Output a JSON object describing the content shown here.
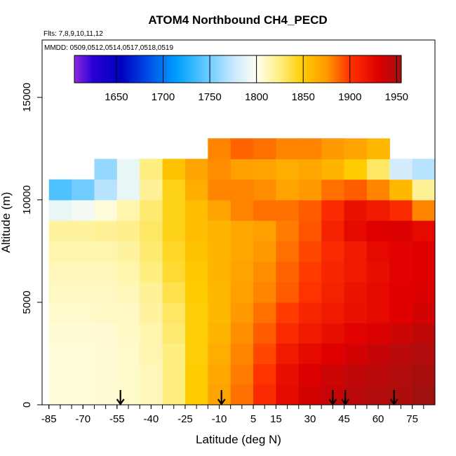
{
  "chart_data": {
    "type": "heatmap",
    "title": "ATOM4 Northbound CH4_PECD",
    "flights_note": "Flts: 7,8,9,10,11,12",
    "dates_note": "MMDD: 0509,0512,0514,0517,0518,0519",
    "xlabel": "Latitude (deg N)",
    "ylabel": "Altitude (m)",
    "xlim": [
      -88,
      85
    ],
    "ylim": [
      0,
      17800
    ],
    "x_ticks": [
      -85,
      -70,
      -55,
      -40,
      -25,
      -10,
      5,
      15,
      30,
      45,
      60,
      75
    ],
    "y_ticks": [
      0,
      5000,
      10000,
      15000
    ],
    "grid": false,
    "colorbar": {
      "label_values": [
        1650,
        1700,
        1750,
        1800,
        1850,
        1900,
        1950
      ],
      "range": [
        1605,
        1955
      ],
      "stops": [
        {
          "v": 1605,
          "c": "#8a2be2"
        },
        {
          "v": 1625,
          "c": "#2a00d5"
        },
        {
          "v": 1655,
          "c": "#0000c0"
        },
        {
          "v": 1685,
          "c": "#0050e8"
        },
        {
          "v": 1715,
          "c": "#00a0ff"
        },
        {
          "v": 1745,
          "c": "#60c8ff"
        },
        {
          "v": 1775,
          "c": "#c8e8ff"
        },
        {
          "v": 1800,
          "c": "#fffff0"
        },
        {
          "v": 1825,
          "c": "#ffee80"
        },
        {
          "v": 1850,
          "c": "#ffcc00"
        },
        {
          "v": 1875,
          "c": "#ff9900"
        },
        {
          "v": 1900,
          "c": "#ff3300"
        },
        {
          "v": 1930,
          "c": "#e00000"
        },
        {
          "v": 1955,
          "c": "#a01010"
        }
      ]
    },
    "profile_latitudes_arrows": [
      -53.5,
      -9,
      40,
      45.5,
      67
    ],
    "field": {
      "lat_bins": [
        -85,
        -75,
        -65,
        -55,
        -45,
        -35,
        -25,
        -15,
        -5,
        5,
        15,
        25,
        35,
        45,
        55,
        65,
        75,
        80
      ],
      "alt_bins": [
        0,
        1000,
        2000,
        3000,
        4000,
        5000,
        6000,
        7000,
        8000,
        9000,
        10000,
        11000,
        12000
      ],
      "ch4": [
        [
          1805,
          1805,
          1806,
          1808,
          1812,
          1825,
          1850,
          1870,
          1885,
          1905,
          1925,
          1935,
          1940,
          1945,
          1948,
          1950,
          1955,
          1955
        ],
        [
          1805,
          1805,
          1806,
          1808,
          1812,
          1825,
          1850,
          1868,
          1882,
          1900,
          1922,
          1932,
          1938,
          1942,
          1945,
          1948,
          1952,
          1952
        ],
        [
          1805,
          1805,
          1806,
          1808,
          1814,
          1825,
          1848,
          1865,
          1880,
          1895,
          1915,
          1925,
          1930,
          1935,
          1940,
          1945,
          1948,
          1948
        ],
        [
          1806,
          1806,
          1807,
          1809,
          1815,
          1828,
          1848,
          1862,
          1878,
          1890,
          1905,
          1915,
          1922,
          1928,
          1932,
          1938,
          1942,
          1942
        ],
        [
          1808,
          1808,
          1809,
          1810,
          1818,
          1830,
          1848,
          1860,
          1875,
          1885,
          1898,
          1908,
          1915,
          1920,
          1925,
          1930,
          1935,
          1935
        ],
        [
          1810,
          1810,
          1810,
          1812,
          1820,
          1835,
          1850,
          1860,
          1872,
          1880,
          1890,
          1900,
          1910,
          1918,
          1925,
          1930,
          1932,
          1932
        ],
        [
          1812,
          1812,
          1812,
          1815,
          1825,
          1840,
          1852,
          1862,
          1870,
          1878,
          1888,
          1898,
          1908,
          1915,
          1922,
          1928,
          1930,
          1930
        ],
        [
          1815,
          1815,
          1815,
          1818,
          1828,
          1842,
          1855,
          1862,
          1868,
          1875,
          1885,
          1895,
          1905,
          1915,
          1925,
          1928,
          1930,
          1930
        ],
        [
          1818,
          1818,
          1820,
          1822,
          1830,
          1845,
          1858,
          1862,
          1868,
          1872,
          1882,
          1892,
          1910,
          1925,
          1930,
          1932,
          1925,
          1925
        ],
        [
          1790,
          1795,
          1805,
          1815,
          1828,
          1845,
          1858,
          1870,
          1880,
          1885,
          1885,
          1890,
          1905,
          1920,
          1915,
          1905,
          1880,
          1880
        ],
        [
          1740,
          1750,
          1770,
          1790,
          1820,
          1845,
          1865,
          1880,
          1880,
          1878,
          1870,
          1875,
          1885,
          1890,
          1880,
          1860,
          1820,
          1820
        ],
        [
          null,
          null,
          1760,
          1790,
          1825,
          1855,
          1870,
          1878,
          1872,
          1870,
          1865,
          1868,
          1862,
          1850,
          1830,
          1780,
          1770,
          1770
        ],
        [
          null,
          null,
          null,
          null,
          null,
          null,
          null,
          1880,
          1888,
          1885,
          1880,
          1880,
          1875,
          1870,
          1860,
          null,
          null,
          null
        ]
      ]
    }
  }
}
